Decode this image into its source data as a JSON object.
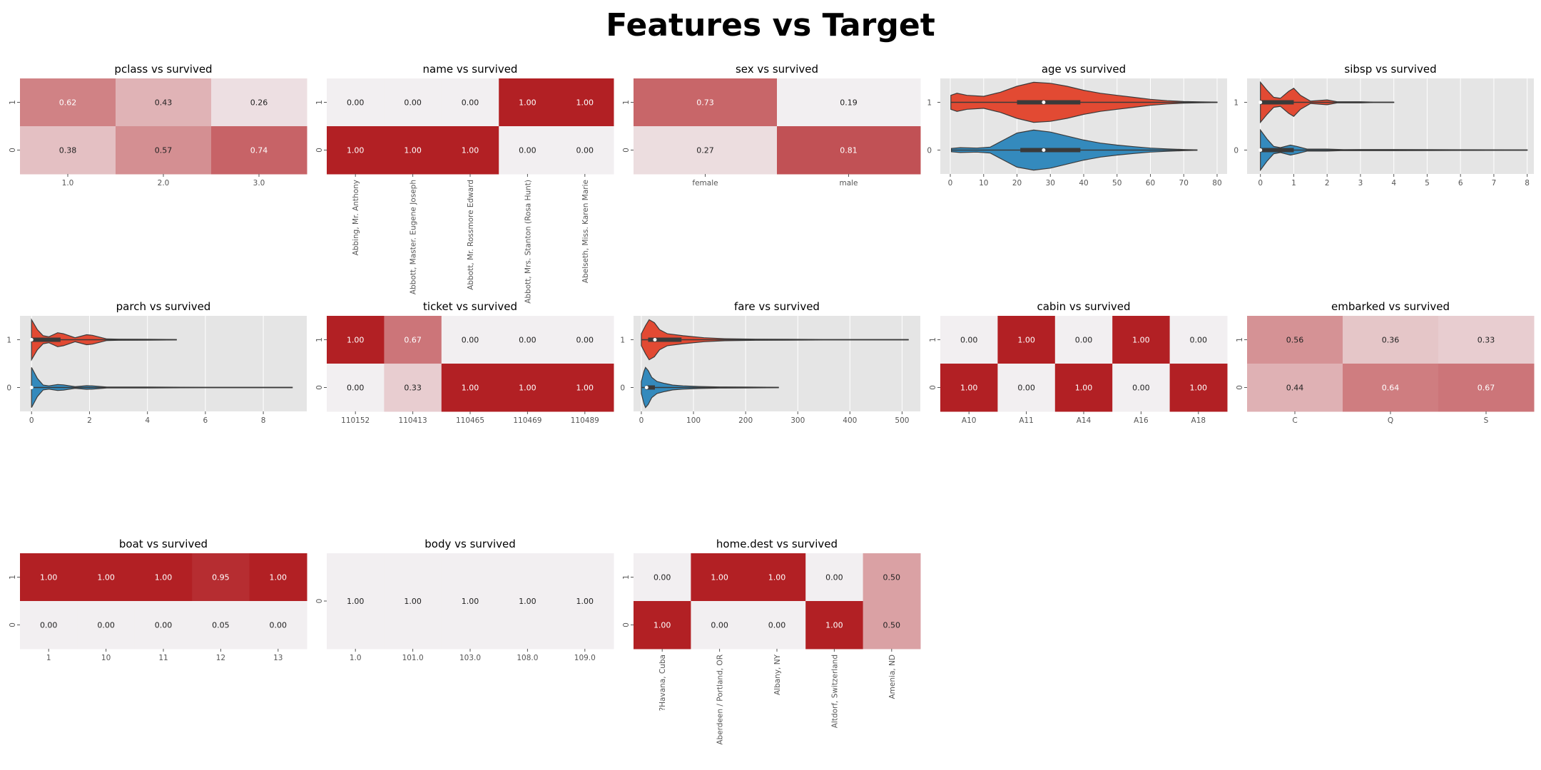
{
  "title": "Features vs Target",
  "colors": {
    "heat_low": "#f2eff1",
    "heat_high": "#b22024",
    "violin_survived": "#e24a33",
    "violin_died": "#348abd",
    "panel_bg": "#e5e5e5",
    "grid": "#ffffff"
  },
  "chart_data": [
    {
      "type": "heatmap",
      "title": "pclass vs survived",
      "columns": [
        "1.0",
        "2.0",
        "3.0"
      ],
      "rows": [
        "1",
        "0"
      ],
      "values": [
        [
          0.62,
          0.43,
          0.26
        ],
        [
          0.38,
          0.57,
          0.74
        ]
      ]
    },
    {
      "type": "heatmap",
      "title": "name vs survived",
      "columns": [
        "Abbing, Mr. Anthony",
        "Abbott, Master. Eugene Joseph",
        "Abbott, Mr. Rossmore Edward",
        "Abbott, Mrs. Stanton (Rosa Hunt)",
        "Abelseth, Miss. Karen Marie"
      ],
      "rows": [
        "1",
        "0"
      ],
      "values": [
        [
          0.0,
          0.0,
          0.0,
          1.0,
          1.0
        ],
        [
          1.0,
          1.0,
          1.0,
          0.0,
          0.0
        ]
      ],
      "rotate_labels": true
    },
    {
      "type": "heatmap",
      "title": "sex vs survived",
      "columns": [
        "female",
        "male"
      ],
      "rows": [
        "1",
        "0"
      ],
      "values": [
        [
          0.73,
          0.19
        ],
        [
          0.27,
          0.81
        ]
      ]
    },
    {
      "type": "violin",
      "title": "age vs survived",
      "categories": [
        "1",
        "0"
      ],
      "xlim": [
        -3,
        83
      ],
      "xticks": [
        0,
        10,
        20,
        30,
        40,
        50,
        60,
        70,
        80
      ],
      "series": [
        {
          "name": "1",
          "min": 0.17,
          "max": 80,
          "q1": 20,
          "median": 28,
          "q3": 39,
          "density": [
            [
              0.17,
              0.35
            ],
            [
              2,
              0.45
            ],
            [
              5,
              0.35
            ],
            [
              10,
              0.3
            ],
            [
              15,
              0.5
            ],
            [
              20,
              0.8
            ],
            [
              25,
              1.0
            ],
            [
              30,
              0.95
            ],
            [
              35,
              0.8
            ],
            [
              40,
              0.6
            ],
            [
              45,
              0.45
            ],
            [
              50,
              0.35
            ],
            [
              55,
              0.25
            ],
            [
              60,
              0.15
            ],
            [
              65,
              0.08
            ],
            [
              70,
              0.04
            ],
            [
              75,
              0.02
            ],
            [
              80,
              0.01
            ]
          ]
        },
        {
          "name": "0",
          "min": 0.33,
          "max": 74,
          "q1": 21,
          "median": 28,
          "q3": 39,
          "density": [
            [
              0.33,
              0.08
            ],
            [
              3,
              0.12
            ],
            [
              8,
              0.1
            ],
            [
              12,
              0.15
            ],
            [
              16,
              0.5
            ],
            [
              20,
              0.85
            ],
            [
              25,
              1.0
            ],
            [
              30,
              0.9
            ],
            [
              35,
              0.7
            ],
            [
              40,
              0.5
            ],
            [
              45,
              0.35
            ],
            [
              50,
              0.25
            ],
            [
              55,
              0.17
            ],
            [
              60,
              0.1
            ],
            [
              65,
              0.06
            ],
            [
              70,
              0.03
            ],
            [
              74,
              0.01
            ]
          ]
        }
      ]
    },
    {
      "type": "violin",
      "title": "sibsp vs survived",
      "categories": [
        "1",
        "0"
      ],
      "xlim": [
        -0.4,
        8.2
      ],
      "xticks": [
        0,
        1,
        2,
        3,
        4,
        5,
        6,
        7,
        8
      ],
      "series": [
        {
          "name": "1",
          "min": 0,
          "max": 4,
          "q1": 0,
          "median": 0,
          "q3": 1,
          "density": [
            [
              0,
              1.0
            ],
            [
              0.2,
              0.6
            ],
            [
              0.4,
              0.25
            ],
            [
              0.6,
              0.2
            ],
            [
              0.85,
              0.55
            ],
            [
              1,
              0.7
            ],
            [
              1.2,
              0.35
            ],
            [
              1.5,
              0.06
            ],
            [
              2,
              0.12
            ],
            [
              2.3,
              0.03
            ],
            [
              3,
              0.03
            ],
            [
              3.4,
              0.01
            ],
            [
              4,
              0.01
            ]
          ]
        },
        {
          "name": "0",
          "min": 0,
          "max": 8,
          "q1": 0,
          "median": 0,
          "q3": 1,
          "density": [
            [
              0,
              1.0
            ],
            [
              0.2,
              0.55
            ],
            [
              0.4,
              0.18
            ],
            [
              0.6,
              0.12
            ],
            [
              0.9,
              0.25
            ],
            [
              1.1,
              0.18
            ],
            [
              1.4,
              0.05
            ],
            [
              2,
              0.05
            ],
            [
              2.5,
              0.02
            ],
            [
              3,
              0.03
            ],
            [
              4,
              0.03
            ],
            [
              5,
              0.02
            ],
            [
              8,
              0.01
            ]
          ]
        }
      ]
    },
    {
      "type": "violin",
      "title": "parch vs survived",
      "categories": [
        "1",
        "0"
      ],
      "xlim": [
        -0.4,
        9.5
      ],
      "xticks": [
        0,
        2,
        4,
        6,
        8
      ],
      "series": [
        {
          "name": "1",
          "min": 0,
          "max": 5,
          "q1": 0,
          "median": 0,
          "q3": 1,
          "density": [
            [
              0,
              1.0
            ],
            [
              0.2,
              0.5
            ],
            [
              0.4,
              0.2
            ],
            [
              0.6,
              0.15
            ],
            [
              0.9,
              0.35
            ],
            [
              1.1,
              0.3
            ],
            [
              1.5,
              0.1
            ],
            [
              1.9,
              0.25
            ],
            [
              2.1,
              0.22
            ],
            [
              2.6,
              0.04
            ],
            [
              3,
              0.03
            ],
            [
              4,
              0.02
            ],
            [
              5,
              0.01
            ]
          ]
        },
        {
          "name": "0",
          "min": 0,
          "max": 9,
          "q1": 0,
          "median": 0,
          "q3": 0,
          "density": [
            [
              0,
              1.0
            ],
            [
              0.2,
              0.45
            ],
            [
              0.4,
              0.12
            ],
            [
              0.6,
              0.08
            ],
            [
              0.9,
              0.15
            ],
            [
              1.1,
              0.13
            ],
            [
              1.5,
              0.04
            ],
            [
              1.9,
              0.09
            ],
            [
              2.1,
              0.08
            ],
            [
              2.6,
              0.02
            ],
            [
              4,
              0.02
            ],
            [
              6,
              0.01
            ],
            [
              9,
              0.01
            ]
          ]
        }
      ]
    },
    {
      "type": "heatmap",
      "title": "ticket vs survived",
      "columns": [
        "110152",
        "110413",
        "110465",
        "110469",
        "110489"
      ],
      "rows": [
        "1",
        "0"
      ],
      "values": [
        [
          1.0,
          0.67,
          0.0,
          0.0,
          0.0
        ],
        [
          0.0,
          0.33,
          1.0,
          1.0,
          1.0
        ]
      ]
    },
    {
      "type": "violin",
      "title": "fare vs survived",
      "categories": [
        "1",
        "0"
      ],
      "xlim": [
        -15,
        535
      ],
      "xticks": [
        0,
        100,
        200,
        300,
        400,
        500
      ],
      "series": [
        {
          "name": "1",
          "min": 0,
          "max": 512,
          "q1": 13,
          "median": 26,
          "q3": 77,
          "density": [
            [
              0,
              0.3
            ],
            [
              8,
              0.7
            ],
            [
              15,
              1.0
            ],
            [
              25,
              0.85
            ],
            [
              35,
              0.5
            ],
            [
              50,
              0.3
            ],
            [
              80,
              0.2
            ],
            [
              120,
              0.1
            ],
            [
              160,
              0.05
            ],
            [
              220,
              0.03
            ],
            [
              280,
              0.02
            ],
            [
              350,
              0.01
            ],
            [
              512,
              0.01
            ]
          ]
        },
        {
          "name": "0",
          "min": 0,
          "max": 263,
          "q1": 8,
          "median": 10,
          "q3": 26,
          "density": [
            [
              0,
              0.3
            ],
            [
              5,
              0.8
            ],
            [
              8,
              1.0
            ],
            [
              13,
              0.85
            ],
            [
              20,
              0.5
            ],
            [
              30,
              0.3
            ],
            [
              45,
              0.2
            ],
            [
              60,
              0.12
            ],
            [
              80,
              0.08
            ],
            [
              110,
              0.05
            ],
            [
              150,
              0.03
            ],
            [
              200,
              0.02
            ],
            [
              263,
              0.01
            ]
          ]
        }
      ]
    },
    {
      "type": "heatmap",
      "title": "cabin vs survived",
      "columns": [
        "A10",
        "A11",
        "A14",
        "A16",
        "A18"
      ],
      "rows": [
        "1",
        "0"
      ],
      "values": [
        [
          0.0,
          1.0,
          0.0,
          1.0,
          0.0
        ],
        [
          1.0,
          0.0,
          1.0,
          0.0,
          1.0
        ]
      ]
    },
    {
      "type": "heatmap",
      "title": "embarked vs survived",
      "columns": [
        "C",
        "Q",
        "S"
      ],
      "rows": [
        "1",
        "0"
      ],
      "values": [
        [
          0.56,
          0.36,
          0.33
        ],
        [
          0.44,
          0.64,
          0.67
        ]
      ]
    },
    {
      "type": "heatmap",
      "title": "boat vs survived",
      "columns": [
        "1",
        "10",
        "11",
        "12",
        "13"
      ],
      "rows": [
        "1",
        "0"
      ],
      "values": [
        [
          1.0,
          1.0,
          1.0,
          0.95,
          1.0
        ],
        [
          0.0,
          0.0,
          0.0,
          0.05,
          0.0
        ]
      ]
    },
    {
      "type": "heatmap",
      "title": "body vs survived",
      "columns": [
        "1.0",
        "101.0",
        "103.0",
        "108.0",
        "109.0"
      ],
      "rows": [
        "0"
      ],
      "values": [
        [
          1.0,
          1.0,
          1.0,
          1.0,
          1.0
        ]
      ],
      "uniform_low": true
    },
    {
      "type": "heatmap",
      "title": "home.dest vs survived",
      "columns": [
        "?Havana, Cuba",
        "Aberdeen / Portland, OR",
        "Albany, NY",
        "Altdorf, Switzerland",
        "Amenia, ND"
      ],
      "rows": [
        "1",
        "0"
      ],
      "values": [
        [
          0.0,
          1.0,
          1.0,
          0.0,
          0.5
        ],
        [
          1.0,
          0.0,
          0.0,
          1.0,
          0.5
        ]
      ],
      "rotate_labels": true
    }
  ]
}
